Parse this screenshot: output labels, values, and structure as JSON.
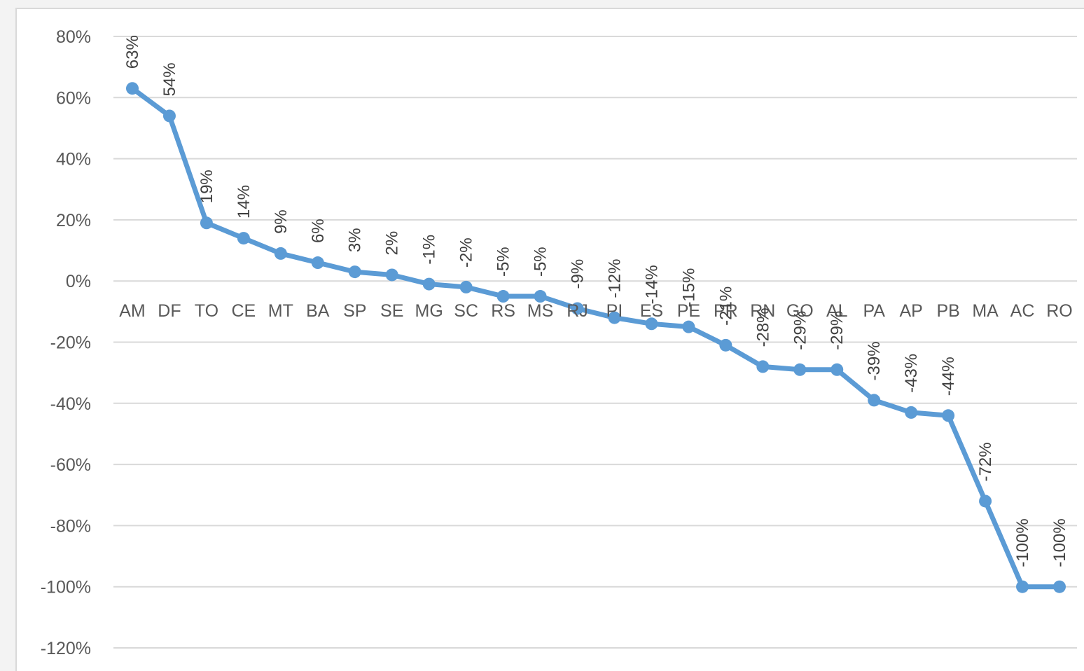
{
  "chart_data": {
    "type": "line",
    "title": "",
    "xlabel": "",
    "ylabel": "",
    "categories": [
      "AM",
      "DF",
      "TO",
      "CE",
      "MT",
      "BA",
      "SP",
      "SE",
      "MG",
      "SC",
      "RS",
      "MS",
      "RJ",
      "PI",
      "ES",
      "PE",
      "PR",
      "RN",
      "GO",
      "AL",
      "PA",
      "AP",
      "PB",
      "MA",
      "AC",
      "RO"
    ],
    "values": [
      63,
      54,
      19,
      14,
      9,
      6,
      3,
      2,
      -1,
      -2,
      -5,
      -5,
      -9,
      -12,
      -14,
      -15,
      -21,
      -28,
      -29,
      -29,
      -39,
      -43,
      -44,
      -72,
      -100,
      -100
    ],
    "data_labels": [
      "63%",
      "54%",
      "19%",
      "14%",
      "9%",
      "6%",
      "3%",
      "2%",
      "-1%",
      "-2%",
      "-5%",
      "-5%",
      "-9%",
      "-12%",
      "-14%",
      "-15%",
      "-21%",
      "-28%",
      "-29%",
      "-29%",
      "-39%",
      "-43%",
      "-44%",
      "-72%",
      "-100%",
      "-100%"
    ],
    "ylim": [
      -120,
      80
    ],
    "yticks": [
      80,
      60,
      40,
      20,
      0,
      -20,
      -40,
      -60,
      -80,
      -100,
      -120
    ],
    "ytick_labels": [
      "80%",
      "60%",
      "40%",
      "20%",
      "0%",
      "-20%",
      "-40%",
      "-60%",
      "-80%",
      "-100%",
      "-120%"
    ],
    "grid": true,
    "legend": "none",
    "colors": {
      "line": "#5b9bd5",
      "grid": "#d9d9d9",
      "text": "#595959"
    }
  }
}
